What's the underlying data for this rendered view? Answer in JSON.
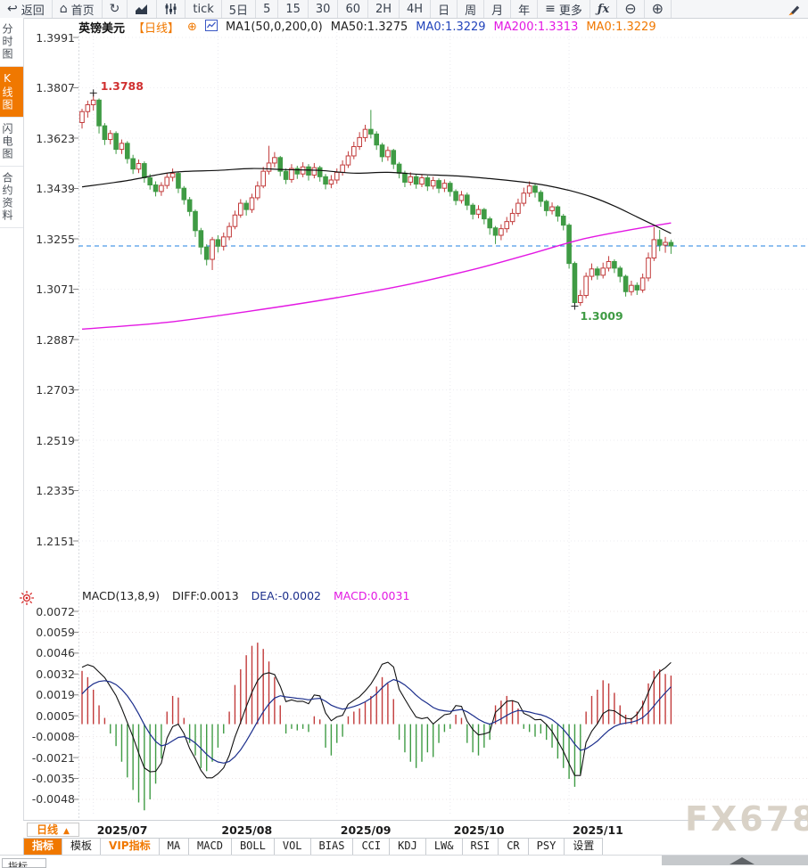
{
  "colors": {
    "accent": "#f07800",
    "candle_up": "#c23b3b",
    "candle_down": "#3f9b44",
    "ma50": "#111111",
    "ma200": "#e318e3",
    "dea_line": "#1b2e8c",
    "diff_line": "#111111",
    "last_price_line": "#1f82e0",
    "watermark": "#d9d2c7"
  },
  "toolbar": {
    "items": [
      {
        "name": "back",
        "glyph": "↩",
        "label": "返回"
      },
      {
        "name": "home",
        "glyph": "⌂",
        "label": "首页"
      },
      {
        "name": "refresh",
        "glyph": "↻",
        "label": ""
      },
      {
        "name": "area-chart",
        "svg": "area-chart",
        "label": ""
      },
      {
        "name": "candle-settings",
        "svg": "candle-sliders",
        "label": ""
      },
      {
        "name": "tick",
        "label": "tick"
      },
      {
        "name": "period-5d",
        "label": "5日"
      },
      {
        "name": "period-5",
        "label": "5"
      },
      {
        "name": "period-15",
        "label": "15"
      },
      {
        "name": "period-30",
        "label": "30"
      },
      {
        "name": "period-60",
        "label": "60"
      },
      {
        "name": "period-2h",
        "label": "2H"
      },
      {
        "name": "period-4h",
        "label": "4H"
      },
      {
        "name": "period-day",
        "label": "日"
      },
      {
        "name": "period-week",
        "label": "周"
      },
      {
        "name": "period-month",
        "label": "月"
      },
      {
        "name": "period-year",
        "label": "年"
      },
      {
        "name": "more",
        "glyph": "≡",
        "label": "更多"
      },
      {
        "name": "indicator-fx",
        "label": "ƒx",
        "fx": true
      },
      {
        "name": "zoom-out",
        "glyph": "⊖",
        "label": ""
      },
      {
        "name": "zoom-in",
        "glyph": "⊕",
        "label": ""
      },
      {
        "name": "draw",
        "svg": "pencil",
        "label": ""
      }
    ]
  },
  "sidebar": {
    "items": [
      {
        "label": "分时图",
        "active": false
      },
      {
        "label": "K线图",
        "active": true
      },
      {
        "label": "闪电图",
        "active": false
      },
      {
        "label": "合约资料",
        "active": false
      }
    ]
  },
  "chart_header": {
    "symbol": "英镑美元",
    "period": "【日线】",
    "expand_icon": "⊕",
    "ma_settings": "MA1(50,0,200,0)",
    "ma50": "MA50:1.3275",
    "ma0_fast": "MA0:1.3229",
    "ma200": "MA200:1.3313",
    "ma0_slow": "MA0:1.3229"
  },
  "macd_header": {
    "title": "MACD(13,8,9)",
    "diff": "DIFF:0.0013",
    "dea": "DEA:-0.0002",
    "macd": "MACD:0.0031"
  },
  "xaxis": {
    "period_button": "日线",
    "period_arrow": "▲",
    "months": [
      "2025/07",
      "2025/08",
      "2025/09",
      "2025/10",
      "2025/11"
    ]
  },
  "bottom_tabs": {
    "items": [
      {
        "label": "指标",
        "variant": "active"
      },
      {
        "label": "模板",
        "variant": "normal"
      },
      {
        "label": "VIP指标",
        "variant": "accent"
      },
      {
        "label": "MA",
        "variant": "mono"
      },
      {
        "label": "MACD",
        "variant": "mono"
      },
      {
        "label": "BOLL",
        "variant": "mono"
      },
      {
        "label": "VOL",
        "variant": "mono"
      },
      {
        "label": "BIAS",
        "variant": "mono"
      },
      {
        "label": "CCI",
        "variant": "mono"
      },
      {
        "label": "KDJ",
        "variant": "mono"
      },
      {
        "label": "LW&",
        "variant": "mono"
      },
      {
        "label": "RSI",
        "variant": "mono"
      },
      {
        "label": "CR",
        "variant": "mono"
      },
      {
        "label": "PSY",
        "variant": "mono"
      },
      {
        "label": "设置",
        "variant": "normal"
      }
    ]
  },
  "bottom": {
    "clipped_label": "指标"
  },
  "watermark": "FX678",
  "chart_data": {
    "type": [
      "candlestick",
      "macd"
    ],
    "main": {
      "type": "candlestick",
      "symbol": "英镑美元 日线",
      "y_ticks": [
        "1.3991",
        "1.3807",
        "1.3623",
        "1.3439",
        "1.3255",
        "1.3071",
        "1.2887",
        "1.2703",
        "1.2519",
        "1.2335",
        "1.2151"
      ],
      "ylim": [
        1.2151,
        1.3991
      ],
      "last_price": 1.3229,
      "high_marker": {
        "index": 2,
        "price": 1.3788,
        "label": "1.3788"
      },
      "low_marker": {
        "index": 87,
        "price": 1.3009,
        "label": "1.3009"
      },
      "months_index": [
        2,
        24,
        45,
        65,
        86
      ],
      "candles": [
        [
          1.368,
          1.373,
          1.3658,
          1.372
        ],
        [
          1.372,
          1.376,
          1.3698,
          1.3745
        ],
        [
          1.3745,
          1.3788,
          1.3724,
          1.3762
        ],
        [
          1.3762,
          1.3768,
          1.364,
          1.3668
        ],
        [
          1.3668,
          1.3678,
          1.3598,
          1.3618
        ],
        [
          1.3618,
          1.3652,
          1.36,
          1.364
        ],
        [
          1.364,
          1.3648,
          1.3565,
          1.3582
        ],
        [
          1.3582,
          1.3618,
          1.3565,
          1.3604
        ],
        [
          1.3604,
          1.3612,
          1.353,
          1.3548
        ],
        [
          1.3548,
          1.3562,
          1.3492,
          1.351
        ],
        [
          1.351,
          1.3545,
          1.3495,
          1.353
        ],
        [
          1.353,
          1.3538,
          1.346,
          1.3478
        ],
        [
          1.3478,
          1.3492,
          1.3435,
          1.3452
        ],
        [
          1.3452,
          1.3465,
          1.341,
          1.3428
        ],
        [
          1.3428,
          1.3462,
          1.3412,
          1.345
        ],
        [
          1.345,
          1.3495,
          1.3438,
          1.348
        ],
        [
          1.348,
          1.3512,
          1.3465,
          1.3494
        ],
        [
          1.3494,
          1.35,
          1.3422,
          1.344
        ],
        [
          1.344,
          1.3448,
          1.338,
          1.3398
        ],
        [
          1.3398,
          1.3408,
          1.3338,
          1.3355
        ],
        [
          1.3355,
          1.3362,
          1.3262,
          1.3285
        ],
        [
          1.3285,
          1.3295,
          1.3198,
          1.3225
        ],
        [
          1.3225,
          1.3235,
          1.3158,
          1.318
        ],
        [
          1.318,
          1.3262,
          1.3141,
          1.3252
        ],
        [
          1.3252,
          1.3268,
          1.3205,
          1.3228
        ],
        [
          1.3228,
          1.3278,
          1.3212,
          1.3262
        ],
        [
          1.3262,
          1.3315,
          1.325,
          1.33
        ],
        [
          1.33,
          1.3358,
          1.329,
          1.3342
        ],
        [
          1.3342,
          1.34,
          1.3332,
          1.3385
        ],
        [
          1.3385,
          1.3396,
          1.334,
          1.3362
        ],
        [
          1.3362,
          1.342,
          1.335,
          1.3405
        ],
        [
          1.3405,
          1.3465,
          1.3396,
          1.3448
        ],
        [
          1.3448,
          1.3518,
          1.344,
          1.3502
        ],
        [
          1.3502,
          1.3595,
          1.349,
          1.3532
        ],
        [
          1.3532,
          1.3572,
          1.3516,
          1.3552
        ],
        [
          1.3552,
          1.3558,
          1.3484,
          1.3502
        ],
        [
          1.3502,
          1.3512,
          1.3455,
          1.3472
        ],
        [
          1.3472,
          1.3528,
          1.346,
          1.3512
        ],
        [
          1.3512,
          1.3522,
          1.3474,
          1.3492
        ],
        [
          1.3492,
          1.3535,
          1.348,
          1.3518
        ],
        [
          1.3518,
          1.3528,
          1.3468,
          1.3488
        ],
        [
          1.3488,
          1.3532,
          1.3476,
          1.3515
        ],
        [
          1.3515,
          1.3522,
          1.3464,
          1.3482
        ],
        [
          1.3482,
          1.3492,
          1.3436,
          1.3455
        ],
        [
          1.3455,
          1.3488,
          1.344,
          1.347
        ],
        [
          1.347,
          1.3512,
          1.3456,
          1.3498
        ],
        [
          1.3498,
          1.3542,
          1.3486,
          1.3525
        ],
        [
          1.3525,
          1.3575,
          1.3514,
          1.3558
        ],
        [
          1.3558,
          1.361,
          1.3546,
          1.3592
        ],
        [
          1.3592,
          1.3645,
          1.358,
          1.3625
        ],
        [
          1.3625,
          1.3672,
          1.361,
          1.3655
        ],
        [
          1.3655,
          1.3726,
          1.3622,
          1.3638
        ],
        [
          1.3638,
          1.3648,
          1.358,
          1.3598
        ],
        [
          1.3598,
          1.3606,
          1.3536,
          1.3555
        ],
        [
          1.3555,
          1.3592,
          1.354,
          1.3578
        ],
        [
          1.3578,
          1.3584,
          1.351,
          1.3528
        ],
        [
          1.3528,
          1.3536,
          1.3476,
          1.3495
        ],
        [
          1.3495,
          1.3504,
          1.3444,
          1.3462
        ],
        [
          1.3462,
          1.3498,
          1.345,
          1.3482
        ],
        [
          1.3482,
          1.349,
          1.3438,
          1.3455
        ],
        [
          1.3455,
          1.3492,
          1.3444,
          1.3478
        ],
        [
          1.3478,
          1.3486,
          1.343,
          1.3448
        ],
        [
          1.3448,
          1.3482,
          1.3436,
          1.3468
        ],
        [
          1.3468,
          1.3476,
          1.3422,
          1.344
        ],
        [
          1.344,
          1.3472,
          1.3426,
          1.3458
        ],
        [
          1.3458,
          1.3466,
          1.341,
          1.3428
        ],
        [
          1.3428,
          1.3436,
          1.3378,
          1.3395
        ],
        [
          1.3395,
          1.343,
          1.3384,
          1.3415
        ],
        [
          1.3415,
          1.3424,
          1.336,
          1.3378
        ],
        [
          1.3378,
          1.3386,
          1.3326,
          1.3345
        ],
        [
          1.3345,
          1.3378,
          1.333,
          1.3362
        ],
        [
          1.3362,
          1.3368,
          1.3308,
          1.3328
        ],
        [
          1.3328,
          1.3336,
          1.327,
          1.3295
        ],
        [
          1.3295,
          1.3302,
          1.3236,
          1.3268
        ],
        [
          1.3268,
          1.3308,
          1.325,
          1.3292
        ],
        [
          1.3292,
          1.3335,
          1.3278,
          1.3318
        ],
        [
          1.3318,
          1.3365,
          1.3306,
          1.3348
        ],
        [
          1.3348,
          1.3402,
          1.3336,
          1.3385
        ],
        [
          1.3385,
          1.3442,
          1.3374,
          1.3422
        ],
        [
          1.3422,
          1.3465,
          1.3408,
          1.3448
        ],
        [
          1.3448,
          1.3456,
          1.3406,
          1.3425
        ],
        [
          1.3425,
          1.3433,
          1.3372,
          1.3392
        ],
        [
          1.3392,
          1.3398,
          1.3338,
          1.3358
        ],
        [
          1.3358,
          1.3388,
          1.3344,
          1.3372
        ],
        [
          1.3372,
          1.3378,
          1.3318,
          1.3338
        ],
        [
          1.3338,
          1.3346,
          1.3286,
          1.3305
        ],
        [
          1.3305,
          1.3312,
          1.3146,
          1.3165
        ],
        [
          1.3165,
          1.3172,
          1.3009,
          1.3022
        ],
        [
          1.3022,
          1.3068,
          1.301,
          1.3048
        ],
        [
          1.3048,
          1.3132,
          1.3038,
          1.3118
        ],
        [
          1.3118,
          1.3165,
          1.3104,
          1.3145
        ],
        [
          1.3145,
          1.3154,
          1.3106,
          1.3122
        ],
        [
          1.3122,
          1.3168,
          1.311,
          1.3148
        ],
        [
          1.3148,
          1.3192,
          1.3136,
          1.3172
        ],
        [
          1.3172,
          1.318,
          1.313,
          1.3148
        ],
        [
          1.3148,
          1.3156,
          1.3096,
          1.3118
        ],
        [
          1.3118,
          1.3124,
          1.3044,
          1.3062
        ],
        [
          1.3062,
          1.3102,
          1.3048,
          1.3085
        ],
        [
          1.3085,
          1.3096,
          1.305,
          1.3068
        ],
        [
          1.3068,
          1.3128,
          1.3058,
          1.3112
        ],
        [
          1.3112,
          1.3205,
          1.31,
          1.3185
        ],
        [
          1.3185,
          1.3298,
          1.3174,
          1.3252
        ],
        [
          1.3252,
          1.3288,
          1.321,
          1.3232
        ],
        [
          1.3232,
          1.3262,
          1.3204,
          1.3242
        ],
        [
          1.3242,
          1.3252,
          1.32,
          1.3229
        ]
      ],
      "ma50_points": [
        [
          0,
          1.3445
        ],
        [
          8,
          1.3468
        ],
        [
          16,
          1.3498
        ],
        [
          24,
          1.3505
        ],
        [
          30,
          1.3512
        ],
        [
          36,
          1.3508
        ],
        [
          42,
          1.3505
        ],
        [
          48,
          1.3495
        ],
        [
          54,
          1.3498
        ],
        [
          60,
          1.349
        ],
        [
          66,
          1.3485
        ],
        [
          72,
          1.3475
        ],
        [
          78,
          1.3462
        ],
        [
          82,
          1.345
        ],
        [
          86,
          1.3432
        ],
        [
          90,
          1.3408
        ],
        [
          94,
          1.3375
        ],
        [
          98,
          1.3335
        ],
        [
          101,
          1.3305
        ],
        [
          104,
          1.3275
        ]
      ],
      "ma200_points": [
        [
          0,
          1.2925
        ],
        [
          15,
          1.295
        ],
        [
          30,
          1.2992
        ],
        [
          45,
          1.304
        ],
        [
          58,
          1.309
        ],
        [
          70,
          1.3148
        ],
        [
          80,
          1.3205
        ],
        [
          88,
          1.3252
        ],
        [
          96,
          1.3285
        ],
        [
          104,
          1.3313
        ]
      ]
    },
    "macd": {
      "type": "bar+line",
      "params": "13,8,9",
      "y_ticks": [
        "0.0072",
        "0.0059",
        "0.0046",
        "0.0032",
        "0.0019",
        "0.0005",
        "-0.0008",
        "-0.0021",
        "-0.0035",
        "-0.0048"
      ],
      "ylim": [
        -0.0048,
        0.0072
      ],
      "hist_unit": 0.0001,
      "hist": [
        34,
        30,
        22,
        12,
        4,
        -6,
        -14,
        -24,
        -34,
        -42,
        -50,
        -55,
        -48,
        -38,
        -22,
        8,
        18,
        17,
        4,
        -12,
        -20,
        -28,
        -30,
        -24,
        -15,
        -6,
        8,
        25,
        35,
        44,
        50,
        52,
        48,
        40,
        30,
        12,
        -6,
        -3,
        -4,
        -3,
        -5,
        5,
        3,
        -15,
        -20,
        -12,
        -8,
        5,
        8,
        10,
        14,
        18,
        24,
        30,
        26,
        16,
        -10,
        -18,
        -24,
        -28,
        -24,
        -18,
        -21,
        -12,
        -5,
        -3,
        6,
        4,
        -12,
        -18,
        -20,
        -15,
        -10,
        12,
        15,
        18,
        15,
        10,
        -3,
        -5,
        -8,
        -6,
        -10,
        -15,
        -22,
        -28,
        -35,
        -40,
        -32,
        8,
        18,
        22,
        28,
        26,
        20,
        12,
        6,
        4,
        8,
        15,
        26,
        34,
        35,
        32,
        31
      ],
      "dea_seed": 15,
      "diff_last": 0.0013,
      "dea_last": -0.0002,
      "macd_last": 0.0031
    }
  }
}
